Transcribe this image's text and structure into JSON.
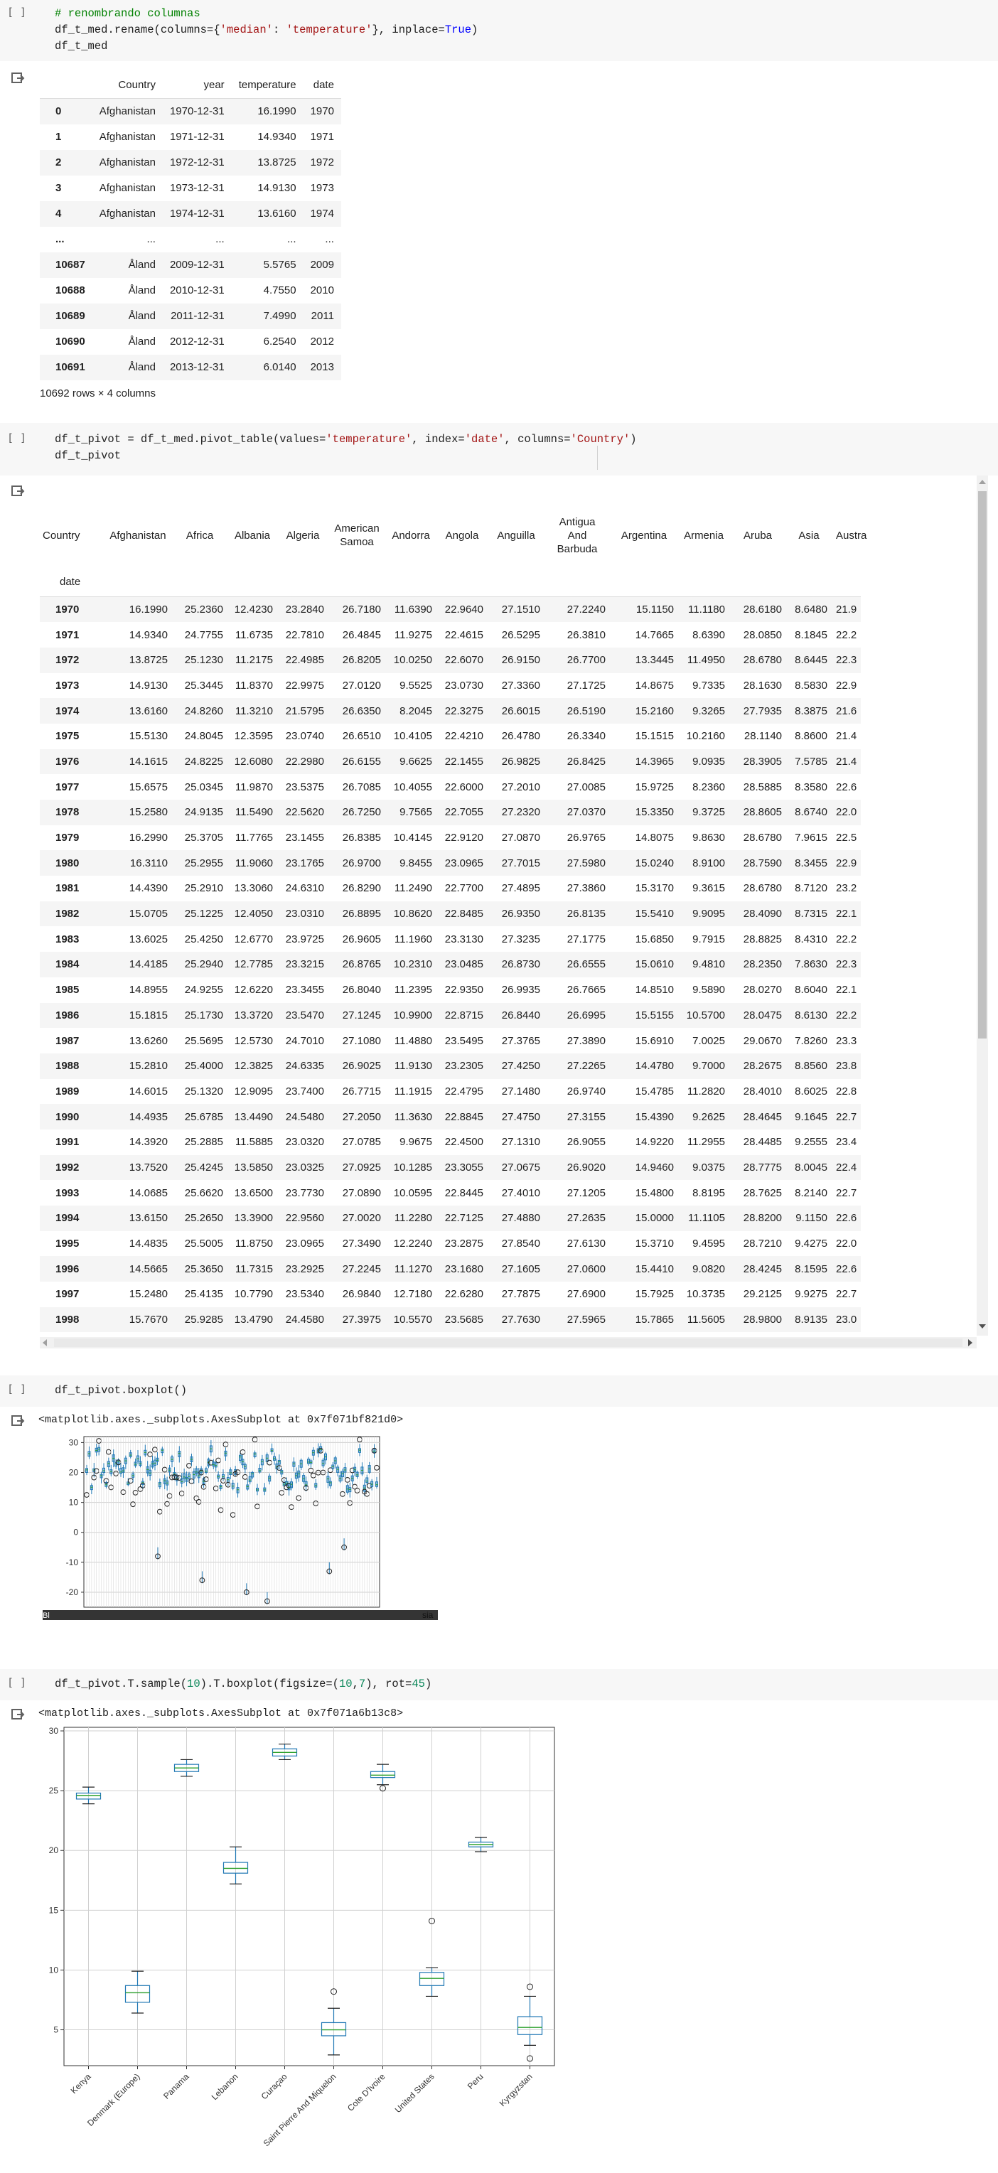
{
  "cell1": {
    "run": "[ ]",
    "lines": [
      [
        [
          "c",
          "# renombrando columnas"
        ]
      ],
      [
        [
          "t",
          "df_t_med.rename(columns={"
        ],
        [
          "s",
          "'median'"
        ],
        [
          "t",
          ": "
        ],
        [
          "s",
          "'temperature'"
        ],
        [
          "t",
          "}, inplace="
        ],
        [
          "k",
          "True"
        ],
        [
          "t",
          ")"
        ]
      ],
      [
        [
          "t",
          "df_t_med"
        ]
      ]
    ]
  },
  "df1": {
    "columns": [
      "",
      "Country",
      "year",
      "temperature",
      "date"
    ],
    "rows": [
      [
        "0",
        "Afghanistan",
        "1970-12-31",
        "16.1990",
        "1970"
      ],
      [
        "1",
        "Afghanistan",
        "1971-12-31",
        "14.9340",
        "1971"
      ],
      [
        "2",
        "Afghanistan",
        "1972-12-31",
        "13.8725",
        "1972"
      ],
      [
        "3",
        "Afghanistan",
        "1973-12-31",
        "14.9130",
        "1973"
      ],
      [
        "4",
        "Afghanistan",
        "1974-12-31",
        "13.6160",
        "1974"
      ],
      [
        "...",
        "...",
        "...",
        "...",
        "..."
      ],
      [
        "10687",
        "Åland",
        "2009-12-31",
        "5.5765",
        "2009"
      ],
      [
        "10688",
        "Åland",
        "2010-12-31",
        "4.7550",
        "2010"
      ],
      [
        "10689",
        "Åland",
        "2011-12-31",
        "7.4990",
        "2011"
      ],
      [
        "10690",
        "Åland",
        "2012-12-31",
        "6.2540",
        "2012"
      ],
      [
        "10691",
        "Åland",
        "2013-12-31",
        "6.0140",
        "2013"
      ]
    ],
    "footer": "10692 rows × 4 columns"
  },
  "cell2": {
    "run": "[ ]",
    "lines": [
      [
        [
          "t",
          "df_t_pivot = df_t_med.pivot_table(values="
        ],
        [
          "s",
          "'temperature'"
        ],
        [
          "t",
          ", index="
        ],
        [
          "s",
          "'date'"
        ],
        [
          "t",
          ", columns="
        ],
        [
          "s",
          "'Country'"
        ],
        [
          "t",
          ")"
        ]
      ],
      [
        [
          "t",
          "df_t_pivot"
        ]
      ]
    ]
  },
  "df2": {
    "corner": "Country",
    "index_name": "date",
    "columns": [
      "Afghanistan",
      "Africa",
      "Albania",
      "Algeria",
      "American Samoa",
      "Andorra",
      "Angola",
      "Anguilla",
      "Antigua And Barbuda",
      "Argentina",
      "Armenia",
      "Aruba",
      "Asia",
      "Austra"
    ],
    "rows": [
      [
        "1970",
        "16.1990",
        "25.2360",
        "12.4230",
        "23.2840",
        "26.7180",
        "11.6390",
        "22.9640",
        "27.1510",
        "27.2240",
        "15.1150",
        "11.1180",
        "28.6180",
        "8.6480",
        "21.9"
      ],
      [
        "1971",
        "14.9340",
        "24.7755",
        "11.6735",
        "22.7810",
        "26.4845",
        "11.9275",
        "22.4615",
        "26.5295",
        "26.3810",
        "14.7665",
        "8.6390",
        "28.0850",
        "8.1845",
        "22.2"
      ],
      [
        "1972",
        "13.8725",
        "25.1230",
        "11.2175",
        "22.4985",
        "26.8205",
        "10.0250",
        "22.6070",
        "26.9150",
        "26.7700",
        "13.3445",
        "11.4950",
        "28.6780",
        "8.6445",
        "22.3"
      ],
      [
        "1973",
        "14.9130",
        "25.3445",
        "11.8370",
        "22.9975",
        "27.0120",
        "9.5525",
        "23.0730",
        "27.3360",
        "27.1725",
        "14.8675",
        "9.7335",
        "28.1630",
        "8.5830",
        "22.9"
      ],
      [
        "1974",
        "13.6160",
        "24.8260",
        "11.3210",
        "21.5795",
        "26.6350",
        "8.2045",
        "22.3275",
        "26.6015",
        "26.5190",
        "15.2160",
        "9.3265",
        "27.7935",
        "8.3875",
        "21.6"
      ],
      [
        "1975",
        "15.5130",
        "24.8045",
        "12.3595",
        "23.0740",
        "26.6510",
        "10.4105",
        "22.4210",
        "26.4780",
        "26.3340",
        "15.1515",
        "10.2160",
        "28.1140",
        "8.8600",
        "21.4"
      ],
      [
        "1976",
        "14.1615",
        "24.8225",
        "12.6080",
        "22.2980",
        "26.6155",
        "9.6625",
        "22.1455",
        "26.9825",
        "26.8425",
        "14.3965",
        "9.0935",
        "28.3905",
        "7.5785",
        "21.4"
      ],
      [
        "1977",
        "15.6575",
        "25.0345",
        "11.9870",
        "23.5375",
        "26.7085",
        "10.4055",
        "22.6000",
        "27.2010",
        "27.0085",
        "15.9725",
        "8.2360",
        "28.5885",
        "8.3580",
        "22.6"
      ],
      [
        "1978",
        "15.2580",
        "24.9135",
        "11.5490",
        "22.5620",
        "26.7250",
        "9.7565",
        "22.7055",
        "27.2320",
        "27.0370",
        "15.3350",
        "9.3725",
        "28.8605",
        "8.6740",
        "22.0"
      ],
      [
        "1979",
        "16.2990",
        "25.3705",
        "11.7765",
        "23.1455",
        "26.8385",
        "10.4145",
        "22.9120",
        "27.0870",
        "26.9765",
        "14.8075",
        "9.8630",
        "28.6780",
        "7.9615",
        "22.5"
      ],
      [
        "1980",
        "16.3110",
        "25.2955",
        "11.9060",
        "23.1765",
        "26.9700",
        "9.8455",
        "23.0965",
        "27.7015",
        "27.5980",
        "15.0240",
        "8.9100",
        "28.7590",
        "8.3455",
        "22.9"
      ],
      [
        "1981",
        "14.4390",
        "25.2910",
        "13.3060",
        "24.6310",
        "26.8290",
        "11.2490",
        "22.7700",
        "27.4895",
        "27.3860",
        "15.3170",
        "9.3615",
        "28.6780",
        "8.7120",
        "23.2"
      ],
      [
        "1982",
        "15.0705",
        "25.1225",
        "12.4050",
        "23.0310",
        "26.8895",
        "10.8620",
        "22.8485",
        "26.9350",
        "26.8135",
        "15.5410",
        "9.9095",
        "28.4090",
        "8.7315",
        "22.1"
      ],
      [
        "1983",
        "13.6025",
        "25.4250",
        "12.6770",
        "23.9725",
        "26.9605",
        "11.1960",
        "23.3130",
        "27.3235",
        "27.1775",
        "15.6850",
        "9.7915",
        "28.8825",
        "8.4310",
        "22.2"
      ],
      [
        "1984",
        "14.4185",
        "25.2940",
        "12.7785",
        "23.3215",
        "26.8765",
        "10.2310",
        "23.0485",
        "26.8730",
        "26.6555",
        "15.0610",
        "9.4810",
        "28.2350",
        "7.8630",
        "22.3"
      ],
      [
        "1985",
        "14.8955",
        "24.9255",
        "12.6220",
        "23.3455",
        "26.8040",
        "11.2395",
        "22.9350",
        "26.9935",
        "26.7665",
        "14.8510",
        "9.5890",
        "28.0270",
        "8.6040",
        "22.1"
      ],
      [
        "1986",
        "15.1815",
        "25.1730",
        "13.3720",
        "23.5470",
        "27.1245",
        "10.9900",
        "22.8715",
        "26.8440",
        "26.6995",
        "15.5155",
        "10.5700",
        "28.0475",
        "8.6130",
        "22.2"
      ],
      [
        "1987",
        "13.6260",
        "25.5695",
        "12.5730",
        "24.7010",
        "27.1080",
        "11.4880",
        "23.5495",
        "27.3765",
        "27.3890",
        "15.6910",
        "7.0025",
        "29.0670",
        "7.8260",
        "23.3"
      ],
      [
        "1988",
        "15.2810",
        "25.4000",
        "12.3825",
        "24.6335",
        "26.9025",
        "11.9130",
        "23.2305",
        "27.4250",
        "27.2265",
        "14.4780",
        "9.7000",
        "28.2675",
        "8.8560",
        "23.8"
      ],
      [
        "1989",
        "14.6015",
        "25.1320",
        "12.9095",
        "23.7400",
        "26.7715",
        "11.1915",
        "22.4795",
        "27.1480",
        "26.9740",
        "15.4785",
        "11.2820",
        "28.4010",
        "8.6025",
        "22.8"
      ],
      [
        "1990",
        "14.4935",
        "25.6785",
        "13.4490",
        "24.5480",
        "27.2050",
        "11.3630",
        "22.8845",
        "27.4750",
        "27.3155",
        "15.4390",
        "9.2625",
        "28.4645",
        "9.1645",
        "22.7"
      ],
      [
        "1991",
        "14.3920",
        "25.2885",
        "11.5885",
        "23.0320",
        "27.0785",
        "9.9675",
        "22.4500",
        "27.1310",
        "26.9055",
        "14.9220",
        "11.2955",
        "28.4485",
        "9.2555",
        "23.4"
      ],
      [
        "1992",
        "13.7520",
        "25.4245",
        "13.5850",
        "23.0325",
        "27.0925",
        "10.1285",
        "23.3055",
        "27.0675",
        "26.9020",
        "14.9460",
        "9.0375",
        "28.7775",
        "8.0045",
        "22.4"
      ],
      [
        "1993",
        "14.0685",
        "25.6620",
        "13.6500",
        "23.7730",
        "27.0890",
        "10.0595",
        "22.8445",
        "27.4010",
        "27.1205",
        "15.4800",
        "8.8195",
        "28.7625",
        "8.2140",
        "22.7"
      ],
      [
        "1994",
        "13.6150",
        "25.2650",
        "13.3900",
        "22.9560",
        "27.0020",
        "11.2280",
        "22.7125",
        "27.4880",
        "27.2635",
        "15.0000",
        "11.1105",
        "28.8200",
        "9.1150",
        "22.6"
      ],
      [
        "1995",
        "14.4835",
        "25.5005",
        "11.8750",
        "23.0965",
        "27.3490",
        "12.2240",
        "23.2875",
        "27.8540",
        "27.6130",
        "15.3710",
        "9.4595",
        "28.7210",
        "9.4275",
        "22.0"
      ],
      [
        "1996",
        "14.5665",
        "25.3650",
        "11.7315",
        "23.2925",
        "27.2245",
        "11.1270",
        "23.1680",
        "27.1605",
        "27.0600",
        "15.4410",
        "9.0820",
        "28.4245",
        "8.1595",
        "22.6"
      ],
      [
        "1997",
        "15.2480",
        "25.4135",
        "10.7790",
        "23.5340",
        "26.9840",
        "12.7180",
        "22.6280",
        "27.7875",
        "27.6900",
        "15.7925",
        "10.3735",
        "29.2125",
        "9.9275",
        "22.7"
      ],
      [
        "1998",
        "15.7670",
        "25.9285",
        "13.4790",
        "24.4580",
        "27.3975",
        "10.5570",
        "23.5685",
        "27.7630",
        "27.5965",
        "15.7865",
        "11.5605",
        "28.9800",
        "8.9135",
        "23.0"
      ]
    ]
  },
  "cell3": {
    "run": "[ ]",
    "lines": [
      [
        [
          "t",
          "df_t_pivot.boxplot()"
        ]
      ]
    ]
  },
  "out3": {
    "repr": "<matplotlib.axes._subplots.AxesSubplot at 0x7f071bf821d0>"
  },
  "chart1_labels": {
    "left": "Bl",
    "right": "sia"
  },
  "cell4": {
    "run": "[ ]",
    "lines": [
      [
        [
          "t",
          "df_t_pivot.T.sample("
        ],
        [
          "n",
          "10"
        ],
        [
          "t",
          ").T.boxplot(figsize=("
        ],
        [
          "n",
          "10"
        ],
        [
          "t",
          ","
        ],
        [
          "n",
          "7"
        ],
        [
          "t",
          "), rot="
        ],
        [
          "n",
          "45"
        ],
        [
          "t",
          ")"
        ]
      ]
    ]
  },
  "out4": {
    "repr": "<matplotlib.axes._subplots.AxesSubplot at 0x7f071a6b13c8>"
  },
  "chart_data": [
    {
      "type": "box",
      "yticks": [
        -20,
        -10,
        0,
        10,
        20,
        30
      ],
      "ylim": [
        -25,
        32
      ],
      "grid": true,
      "box_color": "#1f77b4",
      "median_color": "#2ca02c",
      "summary_ranges": {
        "median_low": 14,
        "median_high": 28,
        "min_low": -24,
        "max_high": 31
      }
    },
    {
      "type": "box",
      "categories": [
        "Kenya",
        "Denmark (Europe)",
        "Panama",
        "Lebanon",
        "Curaçao",
        "Saint Pierre And Miquelon",
        "Cote D'Ivoire",
        "United States",
        "Peru",
        "Kyrgyzstan"
      ],
      "yticks": [
        5,
        10,
        15,
        20,
        25,
        30
      ],
      "ylim": [
        2,
        30
      ],
      "grid": true,
      "box_color": "#1f77b4",
      "median_color": "#2ca02c",
      "boxes": [
        {
          "whislo": 23.9,
          "q1": 24.3,
          "med": 24.6,
          "q3": 24.8,
          "whishi": 25.3,
          "fliers": []
        },
        {
          "whislo": 6.4,
          "q1": 7.3,
          "med": 8.1,
          "q3": 8.7,
          "whishi": 9.9,
          "fliers": []
        },
        {
          "whislo": 26.2,
          "q1": 26.6,
          "med": 26.9,
          "q3": 27.2,
          "whishi": 27.6,
          "fliers": []
        },
        {
          "whislo": 17.2,
          "q1": 18.1,
          "med": 18.5,
          "q3": 19.0,
          "whishi": 20.3,
          "fliers": []
        },
        {
          "whislo": 27.6,
          "q1": 27.9,
          "med": 28.2,
          "q3": 28.5,
          "whishi": 28.9,
          "fliers": []
        },
        {
          "whislo": 2.9,
          "q1": 4.5,
          "med": 5.0,
          "q3": 5.6,
          "whishi": 6.8,
          "fliers": [
            8.2
          ]
        },
        {
          "whislo": 25.5,
          "q1": 26.1,
          "med": 26.3,
          "q3": 26.6,
          "whishi": 27.2,
          "fliers": [
            25.2
          ]
        },
        {
          "whislo": 7.8,
          "q1": 8.7,
          "med": 9.3,
          "q3": 9.8,
          "whishi": 10.2,
          "fliers": [
            14.1
          ]
        },
        {
          "whislo": 19.9,
          "q1": 20.3,
          "med": 20.5,
          "q3": 20.7,
          "whishi": 21.1,
          "fliers": []
        },
        {
          "whislo": 3.7,
          "q1": 4.6,
          "med": 5.2,
          "q3": 6.1,
          "whishi": 7.8,
          "fliers": [
            2.6,
            8.6
          ]
        }
      ]
    }
  ]
}
